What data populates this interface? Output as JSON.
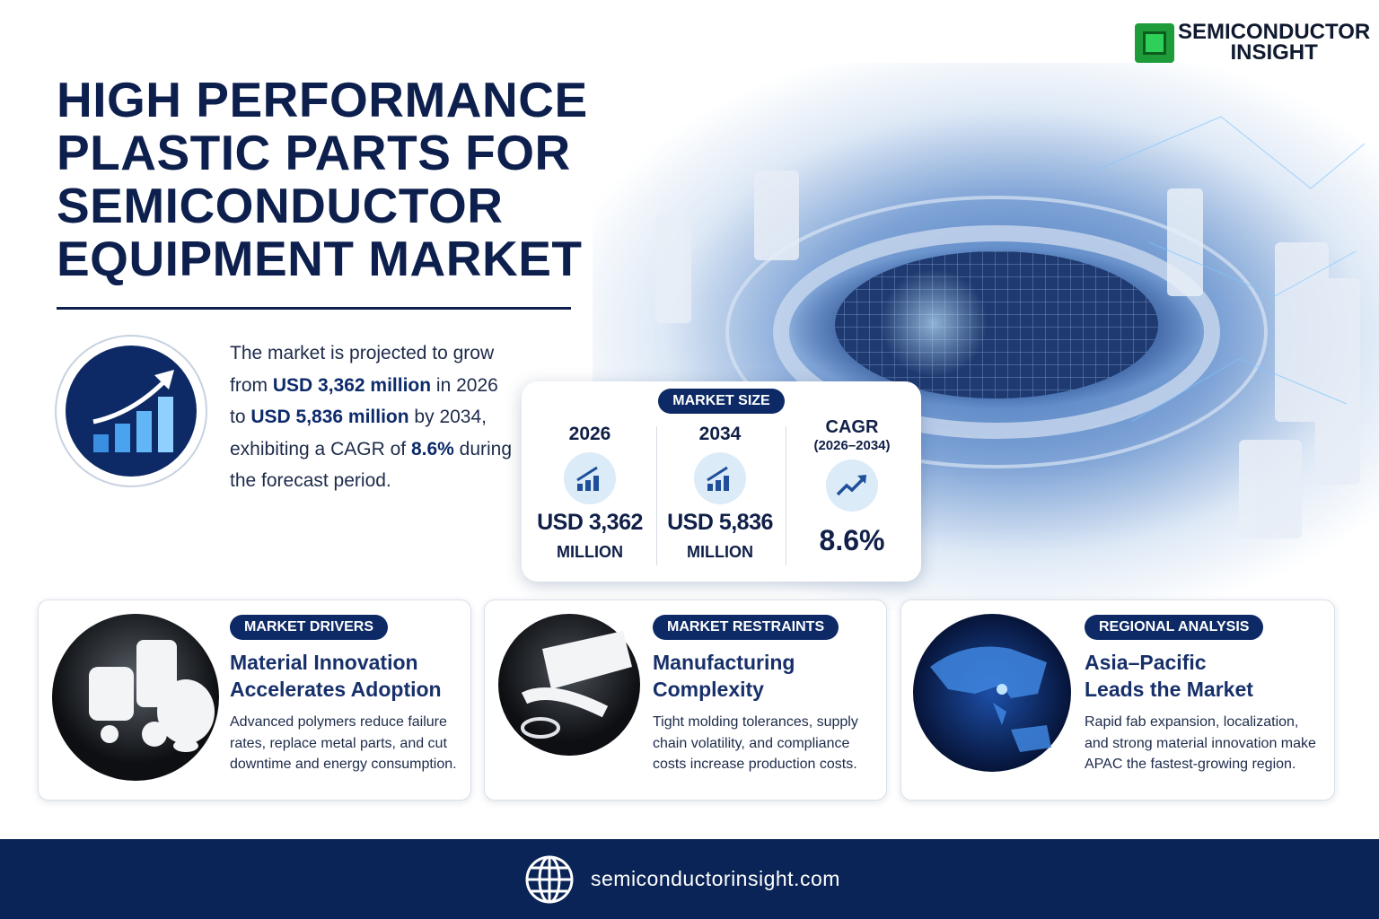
{
  "logo": {
    "line1": "SEMICONDUCTOR",
    "line2": "INSIGHT"
  },
  "title_lines": [
    "HIGH PERFORMANCE",
    "PLASTIC PARTS FOR",
    "SEMICONDUCTOR",
    "EQUIPMENT MARKET"
  ],
  "summary": [
    {
      "text": "The market is projected to grow from ",
      "bold": false
    },
    {
      "text": "USD 3,362 million",
      "bold": true
    },
    {
      "text": " in 2026 to ",
      "bold": false
    },
    {
      "text": "USD 5,836 million",
      "bold": true
    },
    {
      "text": " by 2034, exhibiting a CAGR of ",
      "bold": false
    },
    {
      "text": "8.6%",
      "bold": true
    },
    {
      "text": " during the forecast period.",
      "bold": false
    }
  ],
  "market_size": {
    "badge": "MARKET SIZE",
    "columns": [
      {
        "heading": "2026",
        "value": "USD 3,362",
        "unit": "MILLION"
      },
      {
        "heading": "2034",
        "value": "USD 5,836",
        "unit": "MILLION"
      },
      {
        "heading": "CAGR",
        "subheading": "(2026–2034)",
        "value": "8.6%"
      }
    ]
  },
  "cards": [
    {
      "badge": "MARKET DRIVERS",
      "heading_lines": [
        "Material Innovation",
        "Accelerates Adoption"
      ],
      "body": "Advanced polymers reduce failure rates, replace metal parts, and cut downtime and energy consumption."
    },
    {
      "badge": "MARKET RESTRAINTS",
      "heading_lines": [
        "Manufacturing",
        "Complexity"
      ],
      "body": "Tight molding tolerances, supply chain volatility, and compliance costs increase production costs."
    },
    {
      "badge": "REGIONAL ANALYSIS",
      "heading_lines": [
        "Asia–Pacific",
        "Leads the Market"
      ],
      "body": "Rapid fab expansion, localization, and strong material innovation make APAC the fastest-growing region."
    }
  ],
  "footer": {
    "url": "semiconductorinsight.com"
  }
}
